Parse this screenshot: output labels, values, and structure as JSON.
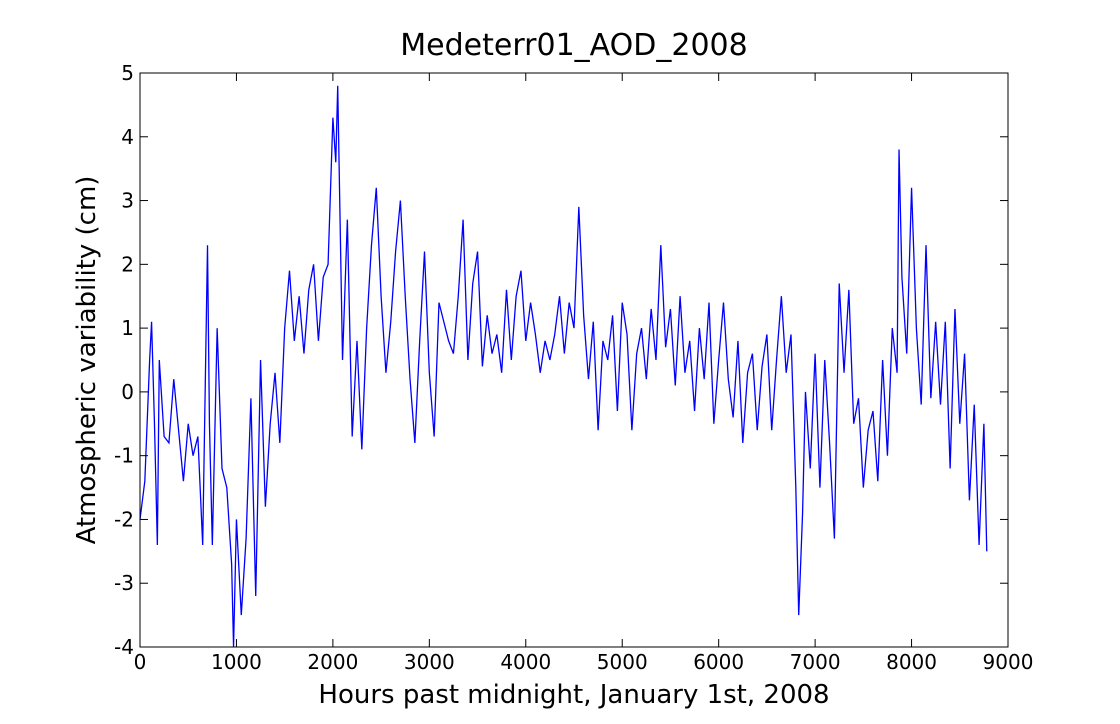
{
  "chart_data": {
    "type": "line",
    "title": "Medeterr01_AOD_2008",
    "xlabel": "Hours past midnight, January 1st, 2008",
    "ylabel": "Atmospheric variability (cm)",
    "xlim": [
      0,
      9000
    ],
    "ylim": [
      -4,
      5
    ],
    "xticks": [
      0,
      1000,
      2000,
      3000,
      4000,
      5000,
      6000,
      7000,
      8000,
      9000
    ],
    "yticks": [
      -4,
      -3,
      -2,
      -1,
      0,
      1,
      2,
      3,
      4,
      5
    ],
    "x": [
      0,
      50,
      100,
      120,
      150,
      180,
      200,
      250,
      300,
      350,
      400,
      450,
      500,
      550,
      600,
      650,
      700,
      720,
      750,
      800,
      850,
      900,
      950,
      970,
      1000,
      1050,
      1100,
      1150,
      1200,
      1250,
      1300,
      1350,
      1400,
      1450,
      1500,
      1550,
      1600,
      1650,
      1700,
      1750,
      1800,
      1850,
      1900,
      1950,
      2000,
      2030,
      2050,
      2100,
      2150,
      2200,
      2250,
      2300,
      2350,
      2400,
      2450,
      2500,
      2550,
      2600,
      2650,
      2700,
      2750,
      2800,
      2850,
      2900,
      2950,
      3000,
      3050,
      3100,
      3150,
      3200,
      3250,
      3300,
      3350,
      3400,
      3450,
      3500,
      3550,
      3600,
      3650,
      3700,
      3750,
      3800,
      3850,
      3900,
      3950,
      4000,
      4050,
      4100,
      4150,
      4200,
      4250,
      4300,
      4350,
      4400,
      4450,
      4500,
      4550,
      4600,
      4650,
      4700,
      4750,
      4800,
      4850,
      4900,
      4950,
      5000,
      5050,
      5100,
      5150,
      5200,
      5250,
      5300,
      5350,
      5400,
      5450,
      5500,
      5550,
      5600,
      5650,
      5700,
      5750,
      5800,
      5850,
      5900,
      5950,
      6000,
      6050,
      6100,
      6150,
      6200,
      6250,
      6300,
      6350,
      6400,
      6450,
      6500,
      6550,
      6600,
      6650,
      6700,
      6750,
      6800,
      6830,
      6870,
      6900,
      6950,
      7000,
      7050,
      7100,
      7150,
      7200,
      7250,
      7300,
      7350,
      7400,
      7450,
      7500,
      7550,
      7600,
      7650,
      7700,
      7750,
      7800,
      7850,
      7870,
      7900,
      7950,
      8000,
      8050,
      8100,
      8150,
      8200,
      8250,
      8300,
      8350,
      8400,
      8450,
      8500,
      8550,
      8600,
      8650,
      8700,
      8750,
      8780
    ],
    "series": [
      {
        "color": "#0000ff",
        "values": [
          -2.0,
          -1.4,
          0.5,
          1.1,
          -0.5,
          -2.4,
          0.5,
          -0.7,
          -0.8,
          0.2,
          -0.6,
          -1.4,
          -0.5,
          -1.0,
          -0.7,
          -2.4,
          2.3,
          -0.5,
          -2.4,
          1.0,
          -1.2,
          -1.5,
          -2.7,
          -4.0,
          -2.0,
          -3.5,
          -2.3,
          -0.1,
          -3.2,
          0.5,
          -1.8,
          -0.5,
          0.3,
          -0.8,
          1.0,
          1.9,
          0.8,
          1.5,
          0.6,
          1.6,
          2.0,
          0.8,
          1.8,
          2.0,
          4.3,
          3.6,
          4.8,
          0.5,
          2.7,
          -0.7,
          0.8,
          -0.9,
          1.0,
          2.3,
          3.2,
          1.5,
          0.3,
          1.1,
          2.2,
          3.0,
          1.5,
          0.2,
          -0.8,
          0.8,
          2.2,
          0.3,
          -0.7,
          1.4,
          1.1,
          0.8,
          0.6,
          1.5,
          2.7,
          0.5,
          1.7,
          2.2,
          0.4,
          1.2,
          0.6,
          0.9,
          0.3,
          1.6,
          0.5,
          1.5,
          1.9,
          0.8,
          1.4,
          0.9,
          0.3,
          0.8,
          0.5,
          0.9,
          1.5,
          0.6,
          1.4,
          1.0,
          2.9,
          1.2,
          0.2,
          1.1,
          -0.6,
          0.8,
          0.5,
          1.2,
          -0.3,
          1.4,
          0.9,
          -0.6,
          0.6,
          1.0,
          0.2,
          1.3,
          0.5,
          2.3,
          0.7,
          1.3,
          0.1,
          1.5,
          0.3,
          0.8,
          -0.3,
          1.0,
          0.2,
          1.4,
          -0.5,
          0.5,
          1.4,
          0.2,
          -0.4,
          0.8,
          -0.8,
          0.3,
          0.6,
          -0.6,
          0.4,
          0.9,
          -0.6,
          0.5,
          1.5,
          0.3,
          0.9,
          -1.5,
          -3.5,
          -1.9,
          0.0,
          -1.2,
          0.6,
          -1.5,
          0.5,
          -0.8,
          -2.3,
          1.7,
          0.3,
          1.6,
          -0.5,
          -0.1,
          -1.5,
          -0.6,
          -0.3,
          -1.4,
          0.5,
          -1.0,
          1.0,
          0.3,
          3.8,
          1.8,
          0.6,
          3.2,
          1.0,
          -0.2,
          2.3,
          -0.1,
          1.1,
          -0.2,
          1.1,
          -1.2,
          1.3,
          -0.5,
          0.6,
          -1.7,
          -0.2,
          -2.4,
          -0.5,
          -2.5
        ]
      }
    ]
  }
}
